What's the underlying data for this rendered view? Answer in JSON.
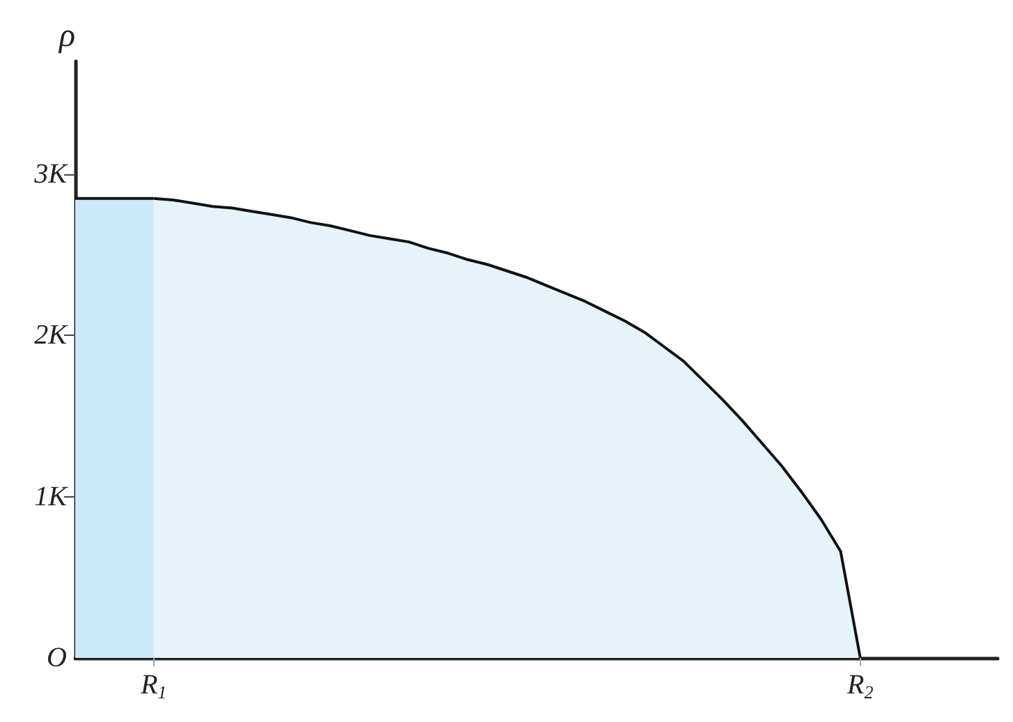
{
  "chart_data": {
    "type": "area",
    "ylabel": "ρ",
    "ylim": [
      0,
      3.7
    ],
    "categories": [
      null,
      null,
      null,
      null,
      "R$_{1}$",
      null,
      null,
      null,
      null,
      null,
      null,
      null,
      null,
      null,
      null,
      null,
      null,
      null,
      null,
      null,
      null,
      null,
      null,
      null,
      null,
      null,
      null,
      null,
      null,
      null,
      null,
      null,
      null,
      null,
      null,
      null,
      null,
      null,
      null,
      null,
      "R$_{2}$",
      null,
      null,
      null,
      null,
      null,
      null,
      null
    ],
    "yticks": [
      {
        "value": 0,
        "label": "O"
      },
      {
        "value": 1,
        "label": "1K"
      },
      {
        "value": 2,
        "label": "2K"
      },
      {
        "value": 3,
        "label": "3K"
      }
    ],
    "grid": false,
    "marker": "none",
    "line_style": "solid",
    "series": [
      {
        "color": "#cce9fb",
        "values": [
          2.85,
          2.85,
          2.85,
          2.85,
          2.85,
          null,
          null,
          null,
          null,
          null,
          null,
          null,
          null,
          null,
          null,
          null,
          null,
          null,
          null,
          null,
          null,
          null,
          null,
          null,
          null,
          null,
          null,
          null,
          null,
          null,
          null,
          null,
          null,
          null,
          null,
          null,
          null,
          null,
          null,
          null,
          null,
          null,
          null,
          null,
          null,
          null,
          null,
          null
        ]
      },
      {
        "color": "#e5f3fa",
        "values": [
          null,
          null,
          null,
          null,
          2.85,
          2.84,
          2.82,
          2.8,
          2.79,
          2.77,
          2.75,
          2.73,
          2.7,
          2.68,
          2.65,
          2.62,
          2.6,
          2.58,
          2.54,
          2.51,
          2.47,
          2.44,
          2.4,
          2.36,
          2.31,
          2.26,
          2.21,
          2.15,
          2.09,
          2.02,
          1.93,
          1.84,
          1.72,
          1.6,
          1.47,
          1.33,
          1.19,
          1.03,
          0.86,
          0.66,
          0,
          null,
          null,
          null,
          null,
          null,
          null,
          null
        ]
      }
    ]
  }
}
